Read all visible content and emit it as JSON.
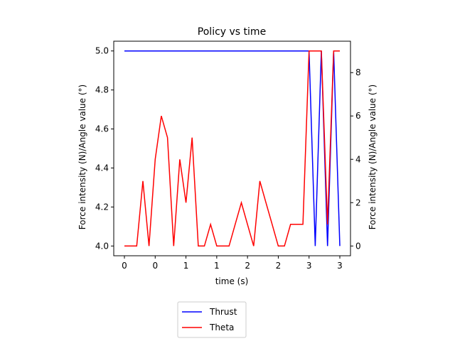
{
  "chart_data": {
    "type": "line",
    "title": "Policy vs time",
    "xlabel": "time (s)",
    "ylabel_left": "Force intensity (N)/Angle value (°)",
    "ylabel_right": "Force intensity (N)/Angle value (°)",
    "x_tick_labels": [
      "0",
      "0",
      "1",
      "1",
      "2",
      "2",
      "3",
      "3"
    ],
    "y_left_ticks": [
      "4.0",
      "4.2",
      "4.4",
      "4.6",
      "4.8",
      "5.0"
    ],
    "y_left_lim": [
      3.95,
      5.05
    ],
    "y_right_ticks": [
      "0",
      "2",
      "4",
      "6",
      "8"
    ],
    "y_right_lim": [
      -0.45,
      9.45
    ],
    "grid": false,
    "legend_position": "bottom-center",
    "series": [
      {
        "name": "Thrust",
        "axis": "left",
        "color": "#0000ff",
        "values": [
          5,
          5,
          5,
          5,
          5,
          5,
          5,
          5,
          5,
          5,
          5,
          5,
          5,
          5,
          5,
          5,
          5,
          5,
          5,
          5,
          5,
          5,
          5,
          5,
          5,
          5,
          5,
          5,
          5,
          5,
          5,
          4,
          5,
          4,
          5,
          4
        ]
      },
      {
        "name": "Theta",
        "axis": "right",
        "color": "#ff0000",
        "values": [
          0,
          0,
          0,
          3,
          0,
          4,
          6,
          5,
          0,
          4,
          2,
          5,
          0,
          0,
          1,
          0,
          0,
          0,
          1,
          2,
          1,
          0,
          3,
          2,
          1,
          0,
          0,
          1,
          1,
          1,
          9,
          9,
          9,
          1,
          9,
          9
        ]
      }
    ]
  }
}
